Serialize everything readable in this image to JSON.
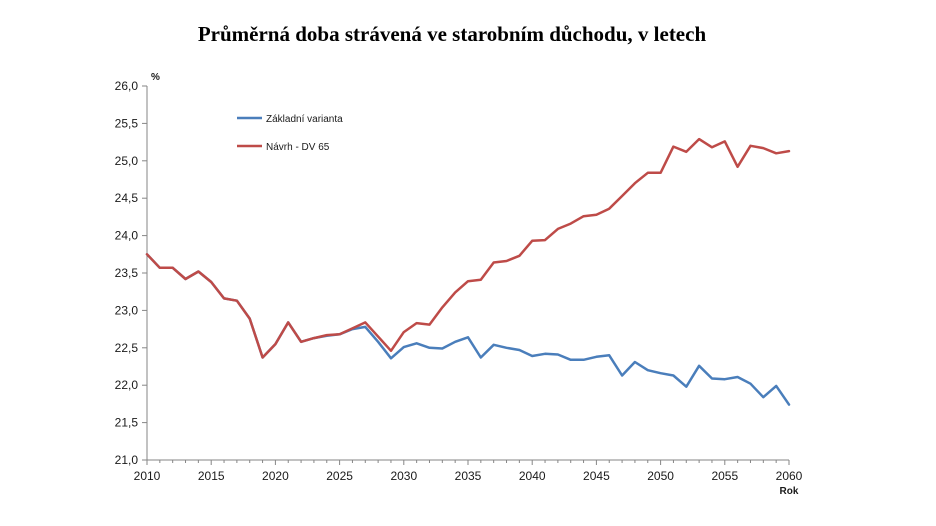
{
  "chart_data": {
    "type": "line",
    "title": "Průměrná doba strávená ve starobním důchodu, v letech",
    "ylabel": "%",
    "xlabel": "Rok",
    "xlim": [
      2010,
      2060
    ],
    "ylim": [
      21.0,
      26.0
    ],
    "x_ticks": [
      2010,
      2015,
      2020,
      2025,
      2030,
      2035,
      2040,
      2045,
      2050,
      2055,
      2060
    ],
    "y_ticks": [
      "21,0",
      "21,5",
      "22,0",
      "22,5",
      "23,0",
      "23,5",
      "24,0",
      "24,5",
      "25,0",
      "25,5",
      "26,0"
    ],
    "grid": false,
    "legend_position": "top-left",
    "x": [
      2010,
      2011,
      2012,
      2013,
      2014,
      2015,
      2016,
      2017,
      2018,
      2019,
      2020,
      2021,
      2022,
      2023,
      2024,
      2025,
      2026,
      2027,
      2028,
      2029,
      2030,
      2031,
      2032,
      2033,
      2034,
      2035,
      2036,
      2037,
      2038,
      2039,
      2040,
      2041,
      2042,
      2043,
      2044,
      2045,
      2046,
      2047,
      2048,
      2049,
      2050,
      2051,
      2052,
      2053,
      2054,
      2055,
      2056,
      2057,
      2058,
      2059,
      2060
    ],
    "series": [
      {
        "name": "Základní varianta",
        "color": "#4a7ebb",
        "values": [
          23.75,
          23.57,
          23.57,
          23.42,
          23.52,
          23.38,
          23.16,
          23.13,
          22.89,
          22.37,
          22.55,
          22.84,
          22.58,
          22.63,
          22.66,
          22.68,
          22.75,
          22.78,
          22.58,
          22.36,
          22.51,
          22.56,
          22.5,
          22.49,
          22.58,
          22.64,
          22.37,
          22.54,
          22.5,
          22.47,
          22.39,
          22.42,
          22.41,
          22.34,
          22.34,
          22.38,
          22.4,
          22.13,
          22.31,
          22.2,
          22.16,
          22.13,
          21.98,
          22.26,
          22.09,
          22.08,
          22.11,
          22.02,
          21.84,
          21.99,
          21.74
        ]
      },
      {
        "name": "Návrh - DV 65",
        "color": "#be4b48",
        "values": [
          23.75,
          23.57,
          23.57,
          23.42,
          23.52,
          23.38,
          23.16,
          23.13,
          22.89,
          22.37,
          22.55,
          22.84,
          22.58,
          22.63,
          22.67,
          22.68,
          22.76,
          22.84,
          22.65,
          22.46,
          22.71,
          22.83,
          22.81,
          23.04,
          23.24,
          23.39,
          23.41,
          23.64,
          23.66,
          23.73,
          23.93,
          23.94,
          24.09,
          24.16,
          24.26,
          24.28,
          24.36,
          24.53,
          24.7,
          24.84,
          24.84,
          25.19,
          25.12,
          25.29,
          25.18,
          25.26,
          24.92,
          25.2,
          25.17,
          25.1,
          25.13
        ]
      }
    ]
  }
}
